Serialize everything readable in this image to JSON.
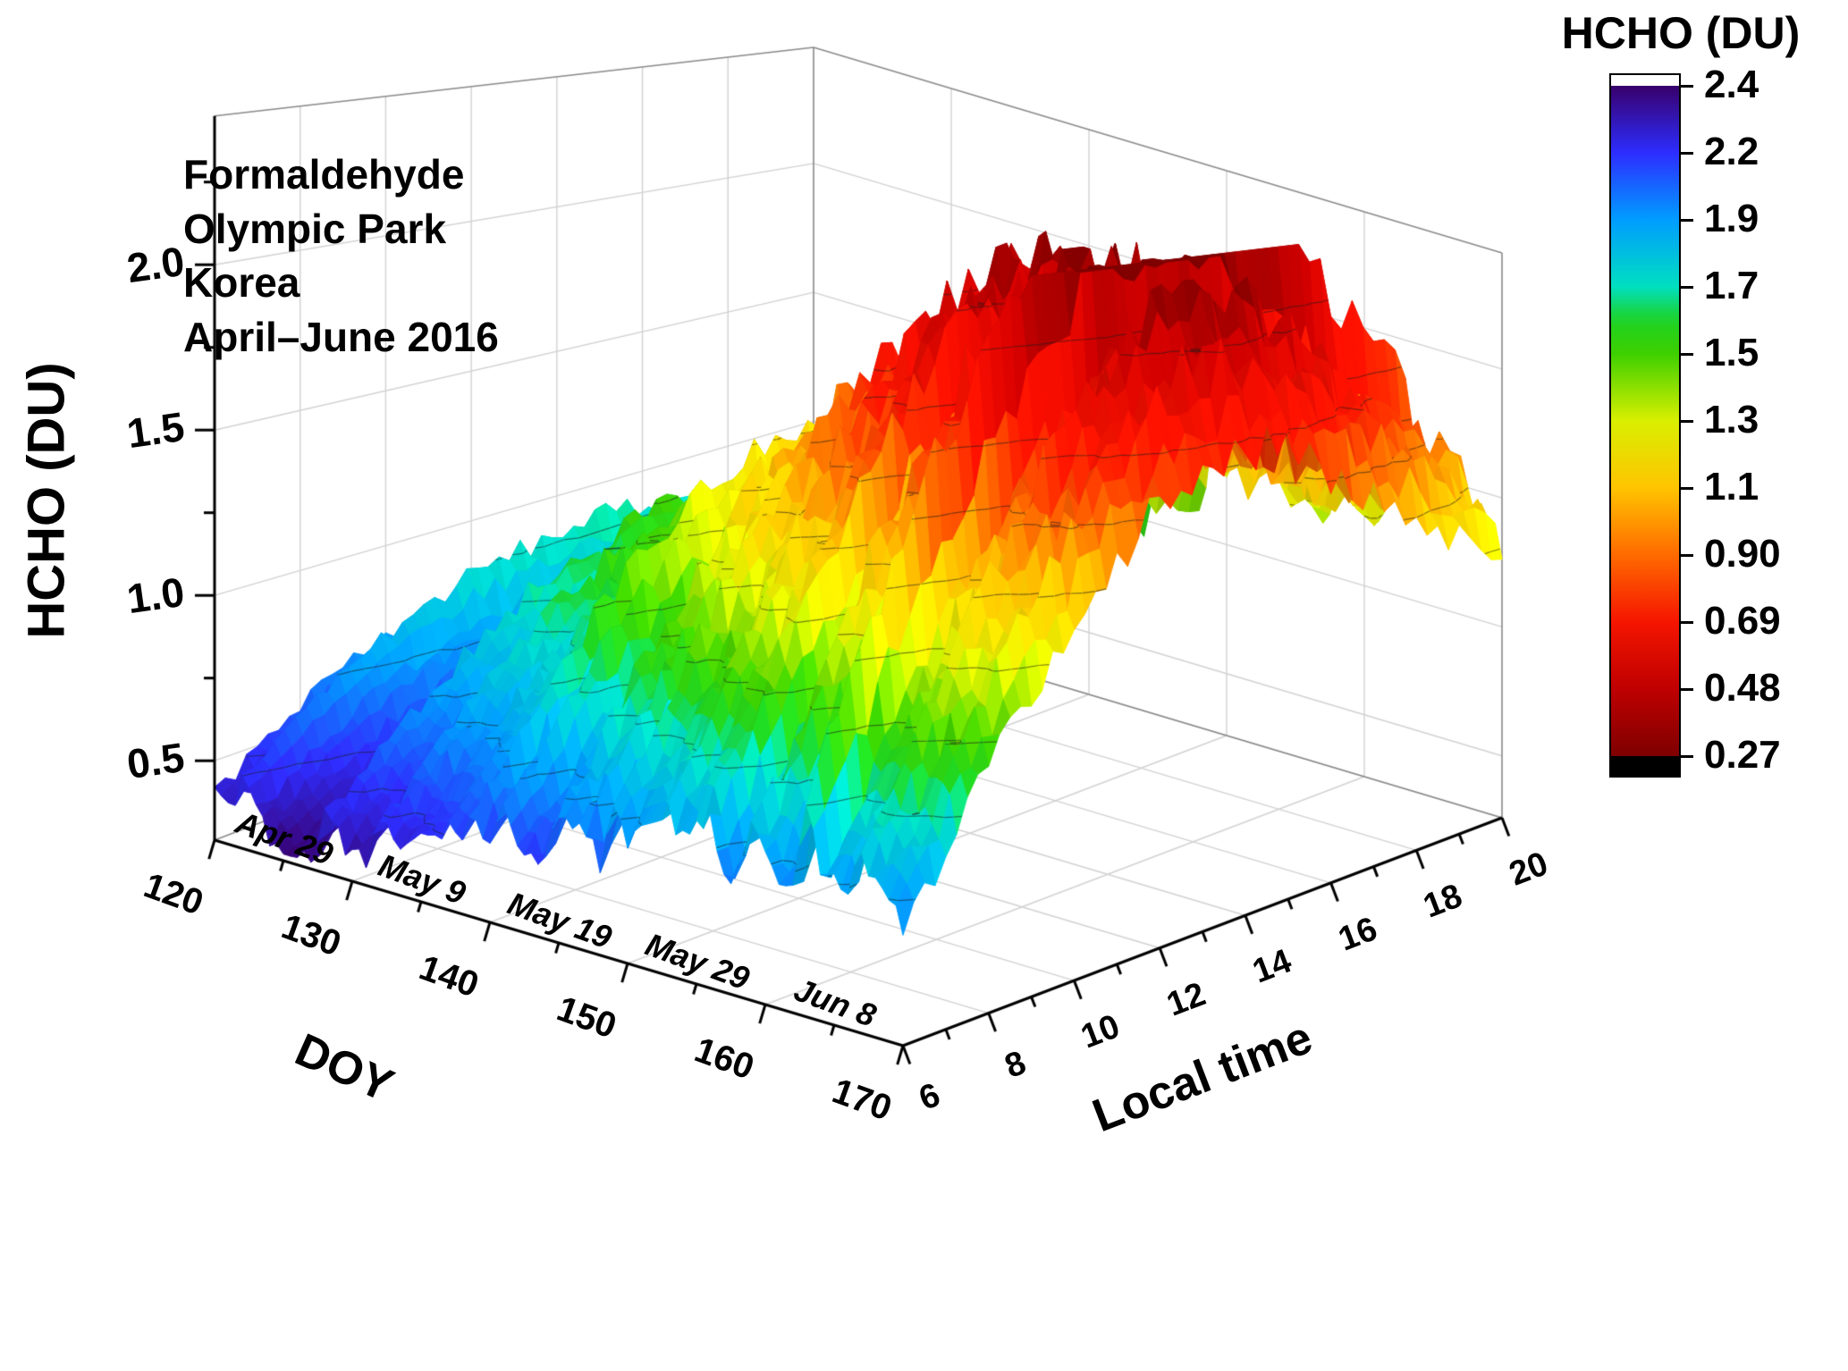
{
  "chart_data": {
    "type": "heatmap",
    "subtype": "3d-surface",
    "title": "HCHO (DU)",
    "annotation_lines": [
      "Formaldehyde",
      "Olympic Park",
      "Korea",
      "April–June 2016"
    ],
    "x_axis": {
      "label": "Local time",
      "ticks": [
        6,
        8,
        10,
        12,
        14,
        16,
        18,
        20
      ],
      "minor_tick_step": 1,
      "range": [
        6,
        20
      ]
    },
    "y_axis": {
      "label": "DOY",
      "ticks": [
        120,
        130,
        140,
        150,
        160,
        170
      ],
      "minor_tick_step": 5,
      "range": [
        120,
        170
      ],
      "date_ticks": [
        {
          "doy": 120,
          "label": "Apr 29"
        },
        {
          "doy": 130,
          "label": "May 9"
        },
        {
          "doy": 140,
          "label": "May 19"
        },
        {
          "doy": 150,
          "label": "May 29"
        },
        {
          "doy": 160,
          "label": "Jun 8"
        }
      ]
    },
    "z_axis": {
      "label": "HCHO (DU)",
      "ticks": [
        "0.5",
        "1.0",
        "1.5",
        "2.0"
      ],
      "range": [
        0.26,
        2.45
      ]
    },
    "colorbar": {
      "title": "HCHO (DU)",
      "tick_labels": [
        "2.4",
        "2.2",
        "1.9",
        "1.7",
        "1.5",
        "1.3",
        "1.1",
        "0.90",
        "0.69",
        "0.48",
        "0.27"
      ]
    },
    "colormap": [
      {
        "value": 0.27,
        "color": "#38006b"
      },
      {
        "value": 0.48,
        "color": "#2d2dff"
      },
      {
        "value": 0.69,
        "color": "#009dff"
      },
      {
        "value": 0.9,
        "color": "#00dfc0"
      },
      {
        "value": 1.0,
        "color": "#1ed322"
      },
      {
        "value": 1.1,
        "color": "#3ed000"
      },
      {
        "value": 1.3,
        "color": "#d9ef00"
      },
      {
        "value": 1.5,
        "color": "#ffc400"
      },
      {
        "value": 1.7,
        "color": "#ff6a00"
      },
      {
        "value": 1.9,
        "color": "#f51500"
      },
      {
        "value": 2.2,
        "color": "#bf0000"
      },
      {
        "value": 2.4,
        "color": "#7e0000"
      }
    ],
    "surface": {
      "doy": [
        120,
        125,
        130,
        135,
        140,
        145,
        150,
        155,
        160,
        165,
        170
      ],
      "time": [
        6,
        7,
        8,
        9,
        10,
        11,
        12,
        13,
        14,
        15,
        16,
        17,
        18,
        19,
        20
      ],
      "hcho_du": [
        [
          0.55,
          0.6,
          0.68,
          0.75,
          0.8,
          0.85,
          0.88,
          0.9,
          0.92,
          0.9,
          0.88,
          0.85,
          0.8,
          0.75,
          0.7
        ],
        [
          0.35,
          0.38,
          0.42,
          0.5,
          0.55,
          0.6,
          0.63,
          0.65,
          0.68,
          0.7,
          0.68,
          0.65,
          0.62,
          0.58,
          0.55
        ],
        [
          0.45,
          0.5,
          0.6,
          0.7,
          0.8,
          0.88,
          0.95,
          1.0,
          1.02,
          1.0,
          0.97,
          0.93,
          0.88,
          0.82,
          0.78
        ],
        [
          0.55,
          0.65,
          0.78,
          0.9,
          1.0,
          1.08,
          1.15,
          1.2,
          1.22,
          1.2,
          1.15,
          1.1,
          1.04,
          0.98,
          0.92
        ],
        [
          0.6,
          0.7,
          0.85,
          0.98,
          1.1,
          1.2,
          1.28,
          1.33,
          1.35,
          1.32,
          1.27,
          1.2,
          1.13,
          1.06,
          1.0
        ],
        [
          0.65,
          0.78,
          0.95,
          1.12,
          1.28,
          1.4,
          1.5,
          1.56,
          1.6,
          1.56,
          1.5,
          1.42,
          1.32,
          1.22,
          1.12
        ],
        [
          0.7,
          0.85,
          1.05,
          1.25,
          1.45,
          1.6,
          1.72,
          1.82,
          1.86,
          1.82,
          1.74,
          1.64,
          1.52,
          1.4,
          1.3
        ],
        [
          0.75,
          0.92,
          1.15,
          1.38,
          1.6,
          1.78,
          1.92,
          2.02,
          2.06,
          2.0,
          1.9,
          1.78,
          1.64,
          1.5,
          1.38
        ],
        [
          0.8,
          0.98,
          1.22,
          1.48,
          1.72,
          1.95,
          2.12,
          2.25,
          2.3,
          2.22,
          2.1,
          1.95,
          1.8,
          1.64,
          1.5
        ],
        [
          0.78,
          0.95,
          1.18,
          1.42,
          1.66,
          1.88,
          2.05,
          2.18,
          2.22,
          2.15,
          2.02,
          1.88,
          1.73,
          1.58,
          1.45
        ],
        [
          0.72,
          0.88,
          1.08,
          1.3,
          1.5,
          1.68,
          1.85,
          1.95,
          2.0,
          1.92,
          1.82,
          1.7,
          1.58,
          1.46,
          1.35
        ]
      ]
    }
  }
}
